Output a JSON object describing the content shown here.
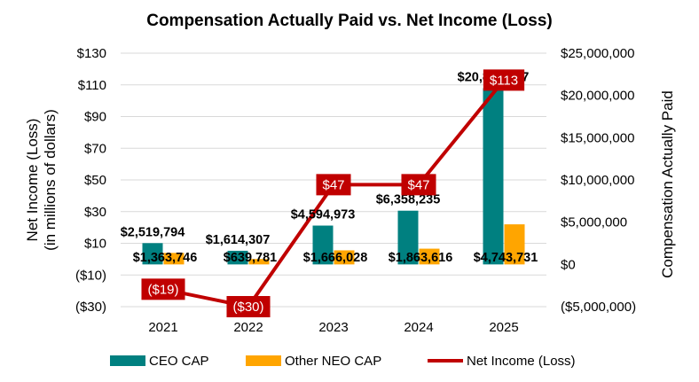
{
  "chart_data": {
    "type": "bar",
    "title": "Compensation Actually Paid vs. Net Income (Loss)",
    "categories": [
      "2021",
      "2022",
      "2023",
      "2024",
      "2025"
    ],
    "series": [
      {
        "name": "CEO CAP",
        "axis": "right",
        "color": "#008080",
        "values": [
          2519794,
          1614307,
          4594973,
          6358235,
          20858017
        ],
        "labels": [
          "$2,519,794",
          "$1,614,307",
          "$4,594,973",
          "$6,358,235",
          "$20,858,017"
        ]
      },
      {
        "name": "Other NEO CAP",
        "axis": "right",
        "color": "#FFA500",
        "values": [
          1363746,
          639781,
          1666028,
          1863616,
          4743731
        ],
        "labels": [
          "$1,363,746",
          "$639,781",
          "$1,666,028",
          "$1,863,616",
          "$4,743,731"
        ]
      },
      {
        "name": "Net Income (Loss)",
        "type": "line",
        "axis": "left",
        "color": "#C00000",
        "values": [
          -19,
          -30,
          47,
          47,
          113
        ],
        "labels": [
          "($19)",
          "($30)",
          "$47",
          "$47",
          "$113"
        ]
      }
    ],
    "left_axis": {
      "label_line1": "Net Income (Loss)",
      "label_line2": "(in millions of dollars)",
      "range": [
        -30,
        130
      ],
      "ticks": [
        130,
        110,
        90,
        70,
        50,
        30,
        10,
        -10,
        -30
      ],
      "tick_labels": [
        "$130",
        "$110",
        "$90",
        "$70",
        "$50",
        "$30",
        "$10",
        "($10)",
        "($30)"
      ]
    },
    "right_axis": {
      "label": "Compensation Actually Paid",
      "range": [
        -5000000,
        25000000
      ],
      "ticks": [
        25000000,
        20000000,
        15000000,
        10000000,
        5000000,
        0,
        -5000000
      ],
      "tick_labels": [
        "$25,000,000",
        "$20,000,000",
        "$15,000,000",
        "$10,000,000",
        "$5,000,000",
        "$0",
        "($5,000,000)"
      ]
    },
    "grid": true,
    "legend": "bottom"
  }
}
